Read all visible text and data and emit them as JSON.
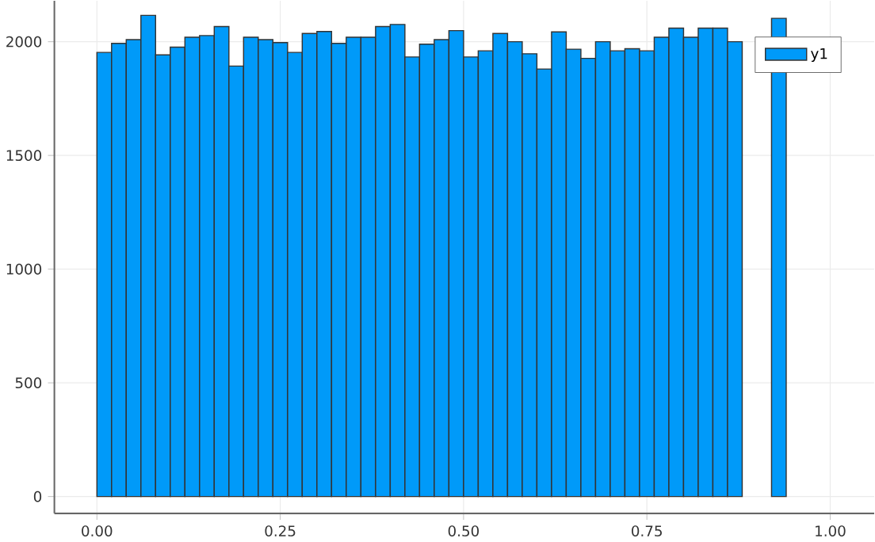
{
  "chart_data": {
    "type": "histogram",
    "bins": [
      0,
      0.02,
      0.04,
      0.06,
      0.08,
      0.1,
      0.12,
      0.14,
      0.16,
      0.18,
      0.2,
      0.22,
      0.24,
      0.26,
      0.28,
      0.3,
      0.32,
      0.34,
      0.36,
      0.38,
      0.4,
      0.42,
      0.44,
      0.46,
      0.48,
      0.5,
      0.52,
      0.54,
      0.56,
      0.58,
      0.6,
      0.62,
      0.64,
      0.66,
      0.68,
      0.7,
      0.72,
      0.74,
      0.76,
      0.78,
      0.8,
      0.82,
      0.84,
      0.86,
      0.88,
      0.9,
      0.92,
      0.94,
      0.96,
      0.98,
      1
    ],
    "series": [
      {
        "name": "y1",
        "color": "#009af9",
        "values": [
          1953,
          1993,
          2009,
          2116,
          1942,
          1976,
          2020,
          2027,
          2067,
          1893,
          2020,
          2009,
          1996,
          1953,
          2036,
          2045,
          1993,
          2020,
          2020,
          2067,
          2076,
          1933,
          1989,
          2009,
          2049,
          1933,
          1960,
          2036,
          2000,
          1947,
          1880,
          2043,
          1967,
          1927,
          2000,
          1960,
          1969,
          1960,
          2020,
          2060,
          2020,
          2060,
          2060,
          2000,
          null,
          null,
          2103,
          null,
          null,
          null
        ]
      }
    ],
    "xlim": [
      -0.058,
      1.06
    ],
    "ylim": [
      -74,
      2180
    ],
    "xticks": [
      {
        "value": 0,
        "label": "0.00"
      },
      {
        "value": 0.25,
        "label": "0.25"
      },
      {
        "value": 0.5,
        "label": "0.50"
      },
      {
        "value": 0.75,
        "label": "0.75"
      },
      {
        "value": 1,
        "label": "1.00"
      }
    ],
    "yticks": [
      0,
      500,
      1000,
      1500,
      2000
    ],
    "grid": true,
    "legend": "top right"
  }
}
